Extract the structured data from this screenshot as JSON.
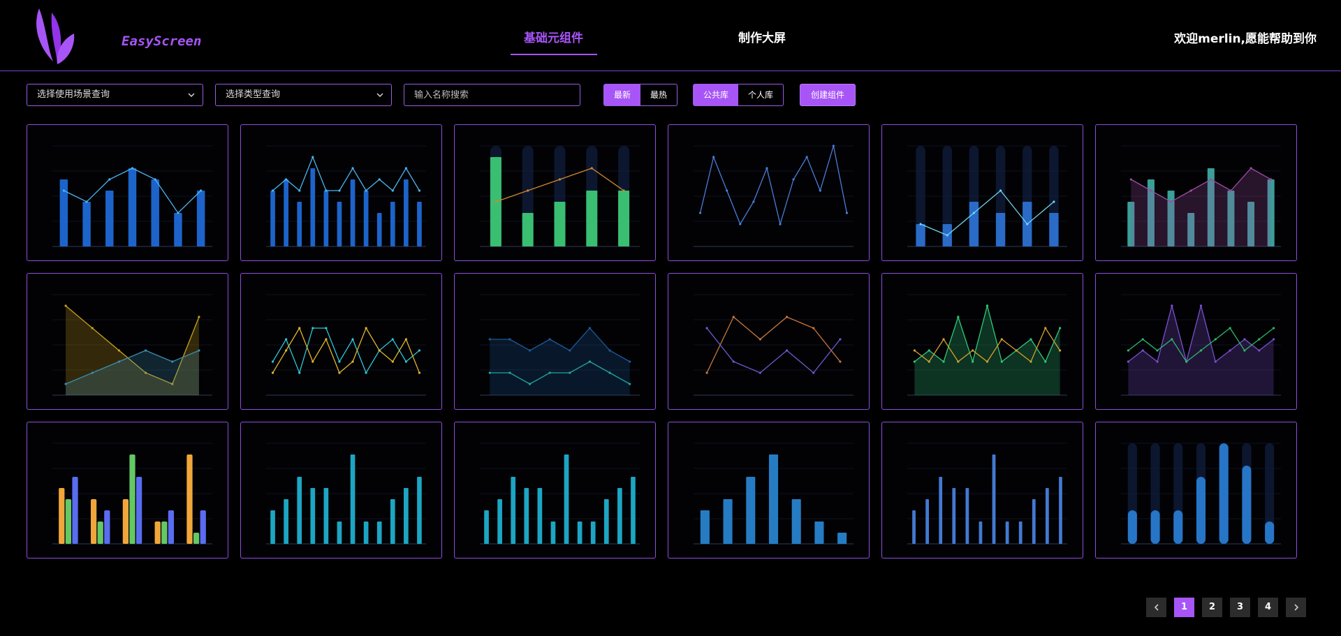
{
  "brand": {
    "name": "EasyScreen"
  },
  "nav": {
    "items": [
      {
        "label": "基础元组件",
        "active": true
      },
      {
        "label": "制作大屏",
        "active": false
      }
    ],
    "welcome": "欢迎merlin,愿能帮助到你"
  },
  "filters": {
    "scene_select": "选择使用场景查询",
    "type_select": "选择类型查询",
    "search_placeholder": "输入名称搜索",
    "sort": {
      "latest": "最新",
      "hottest": "最热",
      "selected": "latest"
    },
    "library": {
      "public": "公共库",
      "personal": "个人库",
      "selected": "public"
    },
    "create_label": "创建组件"
  },
  "cards": [
    {
      "kind": "bar-line",
      "chart_data": {
        "type": "bar",
        "values": [
          6,
          4,
          5,
          7,
          6,
          3,
          5
        ],
        "line": [
          5,
          4,
          6,
          7,
          6,
          3,
          5
        ]
      }
    },
    {
      "kind": "bar-line",
      "chart_data": {
        "type": "bar",
        "values": [
          5,
          6,
          4,
          7,
          5,
          4,
          6,
          5,
          3,
          4,
          6,
          4
        ],
        "line": [
          5,
          6,
          5,
          8,
          5,
          5,
          7,
          5,
          6,
          5,
          7,
          5
        ]
      }
    },
    {
      "kind": "green-bars",
      "chart_data": {
        "type": "bar",
        "values": [
          8,
          3,
          4,
          5,
          5
        ],
        "line": [
          4,
          5,
          6,
          7,
          5
        ]
      }
    },
    {
      "kind": "spikes",
      "chart_data": {
        "type": "line",
        "values": [
          3,
          8,
          5,
          2,
          4,
          7,
          2,
          6,
          8,
          5,
          9,
          3
        ]
      }
    },
    {
      "kind": "blue-cols",
      "chart_data": {
        "type": "bar",
        "values": [
          2,
          2,
          4,
          3,
          4,
          3
        ],
        "line": [
          2,
          1,
          3,
          5,
          2,
          4
        ]
      }
    },
    {
      "kind": "area-bars",
      "chart_data": {
        "type": "bar",
        "values": [
          4,
          6,
          5,
          3,
          7,
          5,
          4,
          6
        ],
        "line": [
          6,
          5,
          4,
          5,
          6,
          5,
          7,
          6
        ]
      }
    },
    {
      "kind": "yellow-area",
      "chart_data": {
        "type": "area",
        "values": [
          8,
          6,
          4,
          2,
          1,
          7
        ],
        "line": [
          1,
          2,
          3,
          4,
          3,
          4
        ]
      }
    },
    {
      "kind": "zigzag",
      "chart_data": {
        "type": "line",
        "values": [
          3,
          5,
          2,
          6,
          6,
          3,
          5,
          2,
          4,
          5,
          3,
          4
        ],
        "line": [
          2,
          4,
          6,
          3,
          5,
          2,
          3,
          6,
          4,
          3,
          5,
          2
        ]
      }
    },
    {
      "kind": "blue-area",
      "chart_data": {
        "type": "area",
        "values": [
          5,
          5,
          4,
          5,
          4,
          6,
          4,
          3
        ],
        "line": [
          2,
          2,
          1,
          2,
          2,
          3,
          2,
          1
        ]
      }
    },
    {
      "kind": "waves",
      "chart_data": {
        "type": "line",
        "values": [
          2,
          7,
          5,
          7,
          6,
          3
        ],
        "line": [
          6,
          3,
          2,
          4,
          2,
          5
        ]
      }
    },
    {
      "kind": "peaks-green",
      "chart_data": {
        "type": "line",
        "values": [
          3,
          4,
          3,
          7,
          3,
          8,
          3,
          4,
          5,
          3,
          6
        ],
        "line": [
          4,
          3,
          5,
          3,
          4,
          3,
          5,
          4,
          3,
          6,
          4
        ]
      }
    },
    {
      "kind": "peaks-purple",
      "chart_data": {
        "type": "area",
        "values": [
          3,
          4,
          3,
          8,
          3,
          8,
          3,
          4,
          5,
          4,
          5
        ],
        "line": [
          4,
          5,
          4,
          5,
          3,
          4,
          5,
          6,
          4,
          5,
          6
        ]
      }
    },
    {
      "kind": "multi-bar",
      "chart_data": {
        "type": "bar",
        "groups": [
          [
            5,
            4,
            6
          ],
          [
            4,
            2,
            3
          ],
          [
            4,
            8,
            6
          ],
          [
            2,
            2,
            3
          ],
          [
            8,
            1,
            3
          ]
        ]
      }
    },
    {
      "kind": "cyan-bars",
      "chart_data": {
        "type": "bar",
        "values": [
          3,
          4,
          6,
          5,
          5,
          2,
          8,
          2,
          2,
          4,
          5,
          6
        ]
      }
    },
    {
      "kind": "cyan-bars2",
      "chart_data": {
        "type": "bar",
        "values": [
          3,
          4,
          6,
          5,
          5,
          2,
          8,
          2,
          2,
          4,
          5,
          6
        ]
      }
    },
    {
      "kind": "blue-cyl",
      "chart_data": {
        "type": "bar",
        "values": [
          3,
          4,
          6,
          8,
          4,
          2,
          1
        ]
      }
    },
    {
      "kind": "thin-bars",
      "chart_data": {
        "type": "bar",
        "values": [
          3,
          4,
          6,
          5,
          5,
          2,
          8,
          2,
          2,
          4,
          5,
          6
        ]
      }
    },
    {
      "kind": "capsules",
      "chart_data": {
        "type": "bar",
        "values": [
          3,
          3,
          3,
          6,
          9,
          7,
          2
        ]
      }
    }
  ],
  "pagination": {
    "pages": [
      "1",
      "2",
      "3",
      "4"
    ],
    "current": "1"
  }
}
